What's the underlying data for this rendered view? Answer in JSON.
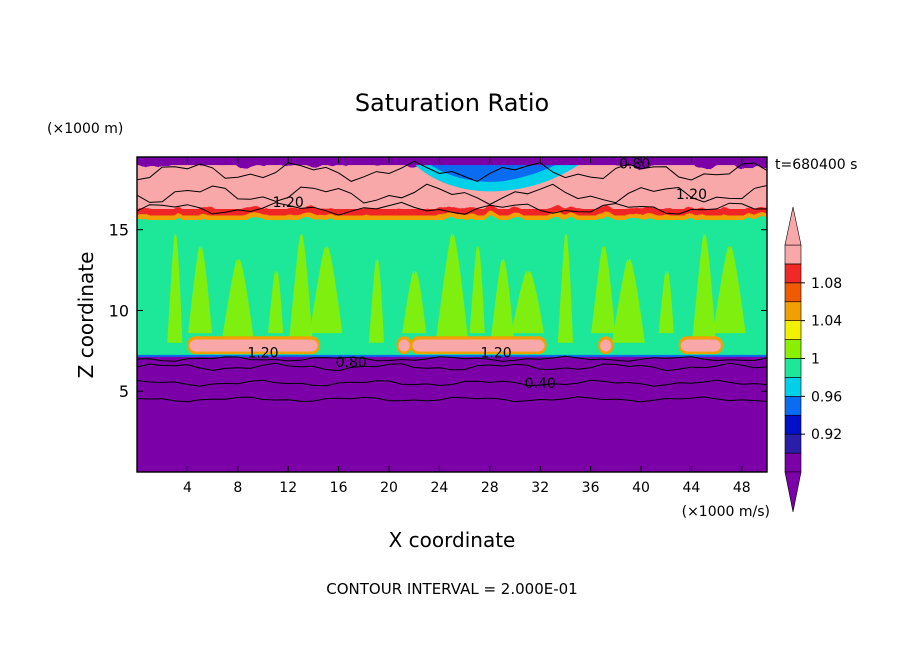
{
  "chart_data": {
    "type": "heatmap",
    "title": "Saturation Ratio",
    "xlabel": "X coordinate",
    "ylabel": "Z coordinate",
    "x_unit": "(×1000 m/s)",
    "y_unit": "(×1000 m)",
    "time_label": "t=680400 s",
    "footer": "CONTOUR INTERVAL = 2.000E-01",
    "xlim": [
      0,
      50
    ],
    "ylim": [
      0,
      19.5
    ],
    "x_ticks": [
      "4",
      "8",
      "12",
      "16",
      "20",
      "24",
      "28",
      "32",
      "36",
      "40",
      "44",
      "48"
    ],
    "x_tick_values": [
      4,
      8,
      12,
      16,
      20,
      24,
      28,
      32,
      36,
      40,
      44,
      48
    ],
    "y_ticks": [
      "5",
      "10",
      "15"
    ],
    "y_tick_values": [
      5,
      10,
      15
    ],
    "contour_labels": [
      {
        "text": "0.80",
        "x": 39.5,
        "y": 19.1
      },
      {
        "text": "1.20",
        "x": 44.0,
        "y": 17.2
      },
      {
        "text": "1.20",
        "x": 12.0,
        "y": 16.7
      },
      {
        "text": "1.20",
        "x": 10.0,
        "y": 7.4
      },
      {
        "text": "1.20",
        "x": 28.5,
        "y": 7.4
      },
      {
        "text": "0.80",
        "x": 17.0,
        "y": 6.8
      },
      {
        "text": "0.40",
        "x": 32.0,
        "y": 5.5
      }
    ],
    "colorbar": {
      "tick_labels": [
        "0.92",
        "0.96",
        "1",
        "1.04",
        "1.08"
      ],
      "levels": [
        0.9,
        0.92,
        0.94,
        0.96,
        0.98,
        1.0,
        1.02,
        1.04,
        1.06,
        1.08,
        1.1
      ],
      "colors": [
        "#7b00a8",
        "#2a1ea8",
        "#0010c8",
        "#0a6cf0",
        "#00d0e8",
        "#1de89a",
        "#8af000",
        "#f0f000",
        "#f0a000",
        "#f05a00",
        "#f02828",
        "#f8a8a8"
      ],
      "under_color": "#7b00a8",
      "over_color": "#f8a8a8"
    },
    "layer_colors": {
      "low": "#7b00a8",
      "mid": "#1de89a",
      "mid_alt": "#8af000",
      "high": "#f8a8a8",
      "edge_red": "#f02828",
      "edge_orange": "#f0a000",
      "top_cyan": "#00d0e8",
      "top_blue": "#0a6cf0",
      "contour": "#000000"
    }
  }
}
